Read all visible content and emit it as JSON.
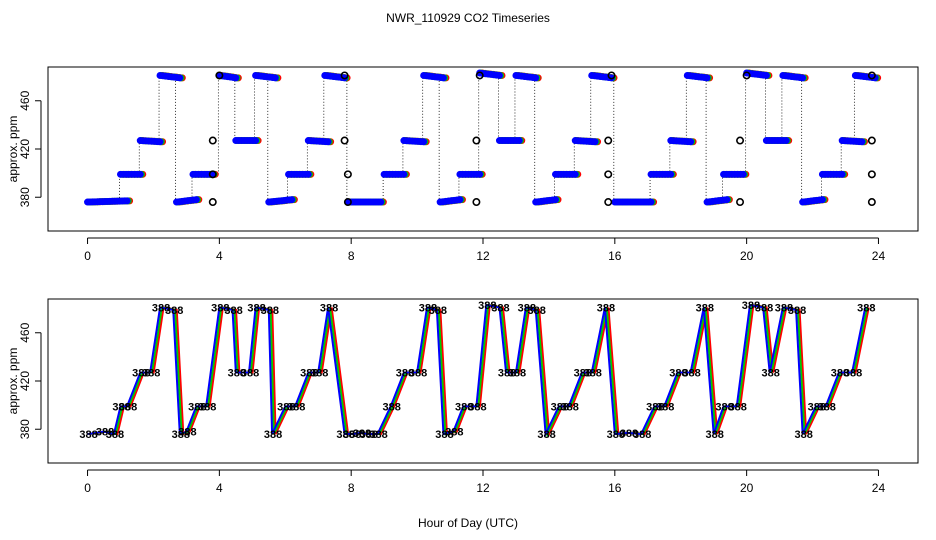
{
  "figure": {
    "title": "NWR_110929  CO2 Timeseries",
    "xlabel": "Hour of Day (UTC)",
    "colors": {
      "red": "#ff0000",
      "green": "#00cc00",
      "blue": "#0000ff",
      "cyan": "#00e5ff",
      "black": "#000000"
    }
  },
  "chart_data": [
    {
      "type": "scatter",
      "panel": "top",
      "ylabel": "approx. ppm",
      "xlim": [
        -1.2,
        25.2
      ],
      "ylim": [
        352,
        488
      ],
      "xticks": [
        0,
        4,
        8,
        12,
        16,
        20,
        24
      ],
      "yticks": [
        380,
        420,
        460
      ],
      "grid": false,
      "steps": [
        {
          "start": 0.0,
          "end": 1.2,
          "y0": 376,
          "y1": 377
        },
        {
          "start": 1.0,
          "end": 1.6,
          "y0": 399,
          "y1": 399
        },
        {
          "start": 1.6,
          "end": 2.2,
          "y0": 427,
          "y1": 426
        },
        {
          "start": 2.2,
          "end": 2.8,
          "y0": 481,
          "y1": 479
        },
        {
          "start": 2.7,
          "end": 3.3,
          "y0": 376,
          "y1": 378
        },
        {
          "start": 3.2,
          "end": 3.8,
          "y0": 399,
          "y1": 399
        },
        {
          "start": 4.0,
          "end": 4.5,
          "y0": 481,
          "y1": 479
        },
        {
          "start": 4.5,
          "end": 5.1,
          "y0": 427,
          "y1": 427
        },
        {
          "start": 5.1,
          "end": 5.7,
          "y0": 481,
          "y1": 479
        },
        {
          "start": 5.5,
          "end": 6.2,
          "y0": 376,
          "y1": 378
        },
        {
          "start": 6.1,
          "end": 6.7,
          "y0": 399,
          "y1": 399
        },
        {
          "start": 6.7,
          "end": 7.3,
          "y0": 427,
          "y1": 426
        },
        {
          "start": 7.2,
          "end": 7.8,
          "y0": 481,
          "y1": 479
        },
        {
          "start": 7.9,
          "end": 8.9,
          "y0": 376,
          "y1": 376
        },
        {
          "start": 9.0,
          "end": 9.6,
          "y0": 399,
          "y1": 399
        },
        {
          "start": 9.6,
          "end": 10.2,
          "y0": 427,
          "y1": 426
        },
        {
          "start": 10.2,
          "end": 10.8,
          "y0": 481,
          "y1": 479
        },
        {
          "start": 10.7,
          "end": 11.3,
          "y0": 376,
          "y1": 378
        },
        {
          "start": 11.3,
          "end": 11.9,
          "y0": 399,
          "y1": 399
        },
        {
          "start": 11.9,
          "end": 12.5,
          "y0": 483,
          "y1": 481
        },
        {
          "start": 12.5,
          "end": 13.1,
          "y0": 427,
          "y1": 427
        },
        {
          "start": 13.0,
          "end": 13.6,
          "y0": 481,
          "y1": 479
        },
        {
          "start": 13.6,
          "end": 14.2,
          "y0": 376,
          "y1": 378
        },
        {
          "start": 14.2,
          "end": 14.8,
          "y0": 399,
          "y1": 399
        },
        {
          "start": 14.8,
          "end": 15.4,
          "y0": 427,
          "y1": 426
        },
        {
          "start": 15.3,
          "end": 15.9,
          "y0": 481,
          "y1": 479
        },
        {
          "start": 16.0,
          "end": 17.1,
          "y0": 376,
          "y1": 376
        },
        {
          "start": 17.1,
          "end": 17.7,
          "y0": 399,
          "y1": 399
        },
        {
          "start": 17.7,
          "end": 18.3,
          "y0": 427,
          "y1": 426
        },
        {
          "start": 18.2,
          "end": 18.8,
          "y0": 481,
          "y1": 479
        },
        {
          "start": 18.8,
          "end": 19.4,
          "y0": 376,
          "y1": 378
        },
        {
          "start": 19.3,
          "end": 19.9,
          "y0": 399,
          "y1": 399
        },
        {
          "start": 20.0,
          "end": 20.6,
          "y0": 483,
          "y1": 481
        },
        {
          "start": 20.6,
          "end": 21.2,
          "y0": 427,
          "y1": 427
        },
        {
          "start": 21.1,
          "end": 21.7,
          "y0": 481,
          "y1": 479
        },
        {
          "start": 21.7,
          "end": 22.3,
          "y0": 376,
          "y1": 378
        },
        {
          "start": 22.3,
          "end": 22.9,
          "y0": 399,
          "y1": 399
        },
        {
          "start": 22.9,
          "end": 23.5,
          "y0": 427,
          "y1": 426
        },
        {
          "start": 23.3,
          "end": 23.9,
          "y0": 481,
          "y1": 479
        }
      ],
      "reference_points": [
        {
          "x": 3.8,
          "y": 376
        },
        {
          "x": 3.8,
          "y": 399
        },
        {
          "x": 3.8,
          "y": 427
        },
        {
          "x": 4.0,
          "y": 481
        },
        {
          "x": 7.8,
          "y": 481
        },
        {
          "x": 7.8,
          "y": 427
        },
        {
          "x": 7.9,
          "y": 399
        },
        {
          "x": 7.9,
          "y": 376
        },
        {
          "x": 11.8,
          "y": 376
        },
        {
          "x": 11.8,
          "y": 427
        },
        {
          "x": 11.9,
          "y": 481
        },
        {
          "x": 15.8,
          "y": 376
        },
        {
          "x": 15.8,
          "y": 399
        },
        {
          "x": 15.8,
          "y": 427
        },
        {
          "x": 15.9,
          "y": 481
        },
        {
          "x": 19.8,
          "y": 376
        },
        {
          "x": 19.8,
          "y": 427
        },
        {
          "x": 20.0,
          "y": 481
        },
        {
          "x": 23.8,
          "y": 376
        },
        {
          "x": 23.8,
          "y": 399
        },
        {
          "x": 23.8,
          "y": 427
        },
        {
          "x": 23.8,
          "y": 481
        }
      ]
    },
    {
      "type": "line",
      "panel": "bottom",
      "ylabel": "approx. ppm",
      "xlim": [
        -1.2,
        25.2
      ],
      "ylim": [
        352,
        488
      ],
      "xticks": [
        0,
        4,
        8,
        12,
        16,
        20,
        24
      ],
      "yticks": [
        380,
        420,
        460
      ],
      "grid": false,
      "marker_text": "388",
      "series_colors": [
        "#ff0000",
        "#00cc00",
        "#0000ff"
      ],
      "x": [
        0.0,
        0.5,
        0.8,
        1.0,
        1.2,
        1.6,
        1.9,
        2.2,
        2.6,
        2.8,
        3.0,
        3.3,
        3.6,
        4.0,
        4.4,
        4.5,
        4.9,
        5.1,
        5.5,
        5.6,
        6.0,
        6.3,
        6.7,
        7.0,
        7.3,
        7.8,
        8.0,
        8.3,
        8.5,
        8.8,
        9.2,
        9.6,
        10.0,
        10.3,
        10.6,
        10.8,
        11.1,
        11.4,
        11.8,
        12.1,
        12.5,
        12.7,
        13.0,
        13.3,
        13.6,
        13.9,
        14.3,
        14.6,
        15.0,
        15.3,
        15.7,
        16.0,
        16.4,
        16.8,
        17.2,
        17.5,
        17.9,
        18.3,
        18.7,
        19.0,
        19.3,
        19.7,
        20.1,
        20.5,
        20.7,
        21.1,
        21.5,
        21.7,
        22.1,
        22.4,
        22.8,
        23.2,
        23.6
      ],
      "values": [
        376,
        378,
        376,
        399,
        399,
        427,
        427,
        481,
        479,
        376,
        378,
        399,
        399,
        481,
        479,
        427,
        427,
        481,
        479,
        376,
        399,
        399,
        427,
        427,
        481,
        376,
        376,
        377,
        376,
        376,
        399,
        427,
        427,
        481,
        479,
        376,
        378,
        399,
        399,
        483,
        481,
        427,
        427,
        481,
        479,
        376,
        399,
        399,
        427,
        427,
        481,
        376,
        377,
        376,
        399,
        399,
        427,
        427,
        481,
        376,
        399,
        399,
        483,
        481,
        427,
        481,
        479,
        376,
        399,
        399,
        427,
        427,
        481
      ]
    }
  ]
}
